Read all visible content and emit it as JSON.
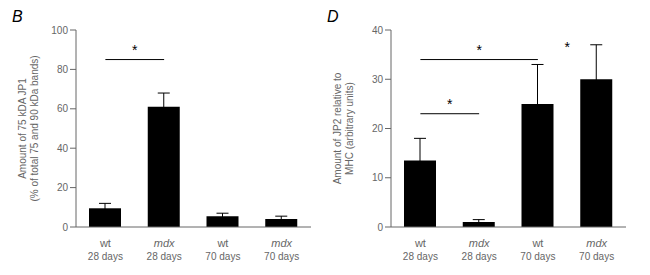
{
  "chart_data": [
    {
      "type": "bar",
      "title": "B",
      "categories": [
        "wt",
        "mdx",
        "wt",
        "mdx"
      ],
      "category_groups": [
        "28 days",
        "28 days",
        "70 days",
        "70 days"
      ],
      "values": [
        9.5,
        61.0,
        5.5,
        4.0
      ],
      "errors": [
        2.5,
        7.0,
        1.5,
        1.5
      ],
      "ylabel": "Amount of 75 kDA JP1\n(% of total 75 and 90 kDa bands)",
      "ylim": [
        0,
        100
      ],
      "yticks": [
        0,
        20,
        40,
        60,
        80,
        100
      ],
      "annotations": [
        {
          "type": "bracket",
          "text": "*",
          "between": [
            0,
            1
          ],
          "y": 85
        }
      ]
    },
    {
      "type": "bar",
      "title": "D",
      "categories": [
        "wt",
        "mdx",
        "wt",
        "mdx"
      ],
      "category_groups": [
        "28 days",
        "28 days",
        "70 days",
        "70 days"
      ],
      "values": [
        13.5,
        1.0,
        25.0,
        30.0
      ],
      "errors": [
        4.5,
        0.5,
        8.0,
        7.0
      ],
      "ylabel": "Amount of JP2 relative to\nMHC (arbitrary units)",
      "ylim": [
        0,
        40
      ],
      "yticks": [
        0,
        10,
        20,
        30,
        40
      ],
      "annotations": [
        {
          "type": "bracket",
          "text": "*",
          "between": [
            0,
            1
          ],
          "y": 23
        },
        {
          "type": "bracket",
          "text": "*",
          "between": [
            0,
            2
          ],
          "y": 34
        },
        {
          "type": "text",
          "text": "*",
          "between": [
            2,
            3
          ],
          "y": 38.5
        }
      ]
    }
  ]
}
